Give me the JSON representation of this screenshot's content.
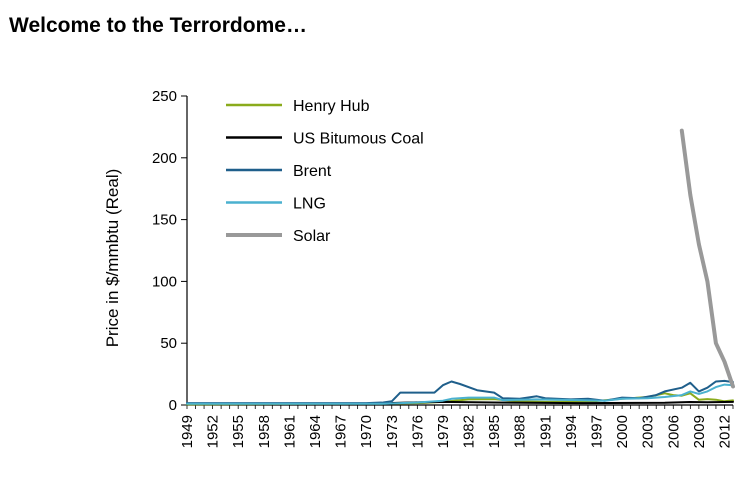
{
  "page": {
    "title": "Welcome to the Terrordome…"
  },
  "chart_data": {
    "type": "line",
    "title": "",
    "xlabel": "",
    "ylabel": "Price in $/mmbtu (Real)",
    "xlim": [
      1949,
      2013
    ],
    "ylim": [
      0,
      250
    ],
    "yticks": [
      0,
      50,
      100,
      150,
      200,
      250
    ],
    "xticks": [
      1949,
      1952,
      1955,
      1958,
      1961,
      1964,
      1967,
      1970,
      1973,
      1976,
      1979,
      1982,
      1985,
      1988,
      1991,
      1994,
      1997,
      2000,
      2003,
      2006,
      2009,
      2012
    ],
    "grid": false,
    "legend_position": "top-left",
    "series": [
      {
        "name": "Henry Hub",
        "color": "#8aab1c",
        "width": 2,
        "points": [
          [
            1949,
            0.5
          ],
          [
            1960,
            0.8
          ],
          [
            1970,
            1.0
          ],
          [
            1976,
            1.5
          ],
          [
            1979,
            2.5
          ],
          [
            1982,
            4.5
          ],
          [
            1985,
            4.8
          ],
          [
            1988,
            2.8
          ],
          [
            1991,
            2.5
          ],
          [
            1994,
            2.7
          ],
          [
            1997,
            3.2
          ],
          [
            2000,
            5.0
          ],
          [
            2003,
            6.5
          ],
          [
            2005,
            9.5
          ],
          [
            2006,
            8.0
          ],
          [
            2007,
            7.5
          ],
          [
            2008,
            9.5
          ],
          [
            2009,
            4.2
          ],
          [
            2010,
            4.8
          ],
          [
            2011,
            4.3
          ],
          [
            2012,
            3.0
          ],
          [
            2013,
            3.7
          ]
        ]
      },
      {
        "name": "US Bitumous Coal",
        "color": "#000000",
        "width": 2,
        "points": [
          [
            1949,
            1.2
          ],
          [
            1960,
            1.1
          ],
          [
            1970,
            1.0
          ],
          [
            1975,
            2.0
          ],
          [
            1979,
            2.5
          ],
          [
            1985,
            2.0
          ],
          [
            1995,
            1.5
          ],
          [
            2005,
            1.8
          ],
          [
            2008,
            2.4
          ],
          [
            2010,
            2.3
          ],
          [
            2013,
            2.5
          ]
        ]
      },
      {
        "name": "Brent",
        "color": "#1f5f8b",
        "width": 2,
        "points": [
          [
            1949,
            1.5
          ],
          [
            1970,
            1.5
          ],
          [
            1972,
            2.0
          ],
          [
            1973,
            3.0
          ],
          [
            1974,
            10.0
          ],
          [
            1978,
            10.0
          ],
          [
            1979,
            16.0
          ],
          [
            1980,
            19.0
          ],
          [
            1981,
            17.0
          ],
          [
            1983,
            12.0
          ],
          [
            1985,
            10.0
          ],
          [
            1986,
            5.5
          ],
          [
            1988,
            5.0
          ],
          [
            1990,
            7.0
          ],
          [
            1991,
            5.5
          ],
          [
            1994,
            4.5
          ],
          [
            1996,
            5.0
          ],
          [
            1998,
            3.5
          ],
          [
            2000,
            6.0
          ],
          [
            2002,
            5.5
          ],
          [
            2004,
            8.0
          ],
          [
            2005,
            11.0
          ],
          [
            2007,
            14.0
          ],
          [
            2008,
            18.0
          ],
          [
            2009,
            11.0
          ],
          [
            2010,
            14.0
          ],
          [
            2011,
            19.0
          ],
          [
            2012,
            19.5
          ],
          [
            2013,
            18.5
          ]
        ]
      },
      {
        "name": "LNG",
        "color": "#4ab1cf",
        "width": 2,
        "points": [
          [
            1949,
            1.0
          ],
          [
            1972,
            1.0
          ],
          [
            1976,
            2.0
          ],
          [
            1979,
            3.5
          ],
          [
            1980,
            5.0
          ],
          [
            1982,
            6.0
          ],
          [
            1985,
            6.0
          ],
          [
            1986,
            4.0
          ],
          [
            1990,
            4.5
          ],
          [
            1995,
            4.0
          ],
          [
            1998,
            3.5
          ],
          [
            2000,
            5.0
          ],
          [
            2003,
            5.5
          ],
          [
            2005,
            6.5
          ],
          [
            2007,
            8.0
          ],
          [
            2008,
            11.0
          ],
          [
            2009,
            9.0
          ],
          [
            2010,
            11.0
          ],
          [
            2011,
            14.5
          ],
          [
            2012,
            16.5
          ],
          [
            2013,
            16.0
          ]
        ]
      },
      {
        "name": "Solar",
        "color": "#999999",
        "width": 4,
        "points": [
          [
            2007,
            222
          ],
          [
            2008,
            170
          ],
          [
            2009,
            130
          ],
          [
            2010,
            100
          ],
          [
            2011,
            50
          ],
          [
            2012,
            35
          ],
          [
            2013,
            15
          ]
        ]
      }
    ]
  }
}
